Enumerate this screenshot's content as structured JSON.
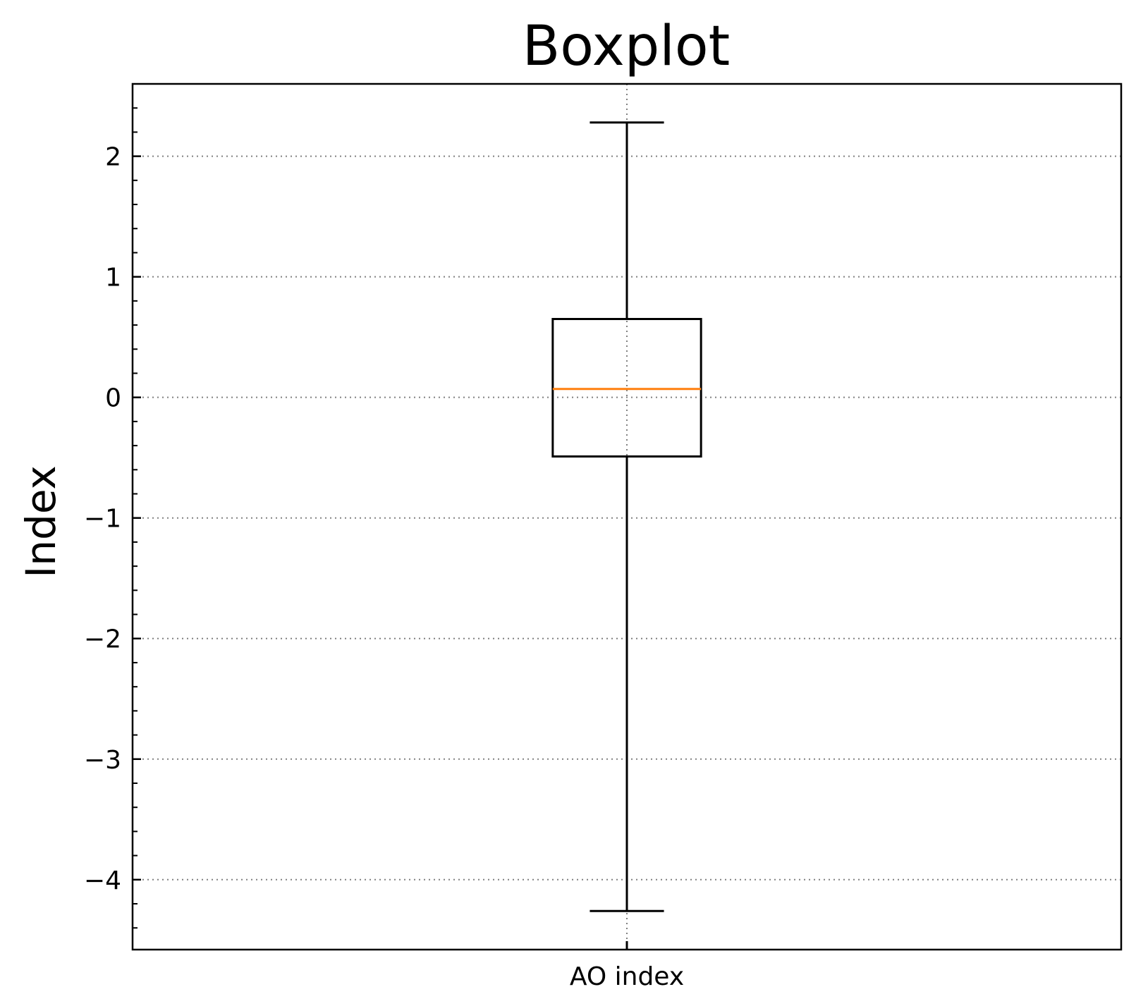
{
  "chart_data": {
    "type": "boxplot",
    "title": "Boxplot",
    "xlabel": "",
    "ylabel": "Index",
    "categories": [
      "AO index"
    ],
    "boxes": [
      {
        "label": "AO index",
        "whisker_low": -4.26,
        "q1": -0.49,
        "median": 0.07,
        "q3": 0.65,
        "whisker_high": 2.28
      }
    ],
    "ylim": [
      -4.58,
      2.6
    ],
    "yticks": [
      2,
      1,
      0,
      -1,
      -2,
      -3,
      -4
    ],
    "ytick_labels": [
      "2",
      "1",
      "0",
      "−1",
      "−2",
      "−3",
      "−4"
    ],
    "minor_tick_step": 0.2,
    "grid": true,
    "grid_style": "dotted",
    "legend": "none",
    "colors": {
      "box": "#000000",
      "median": "#ff7f0e",
      "grid": "#808080"
    }
  }
}
